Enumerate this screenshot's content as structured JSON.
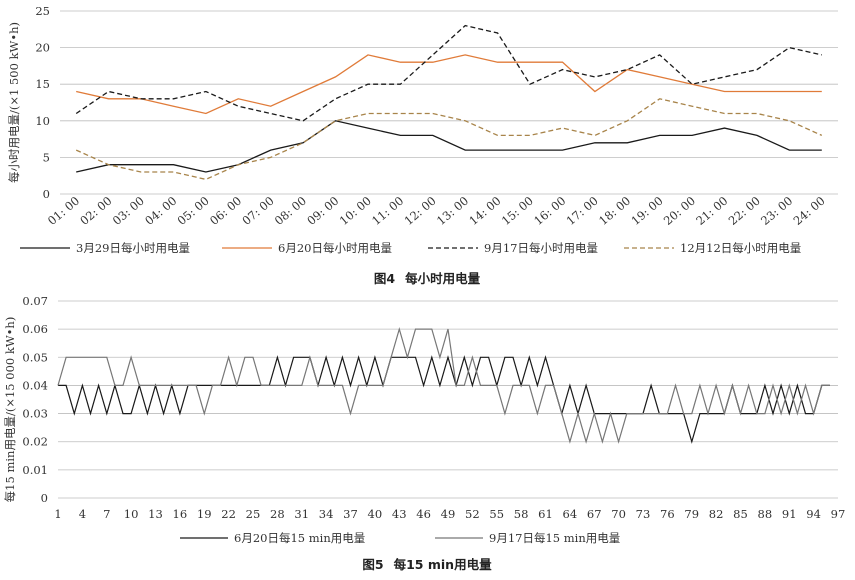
{
  "chart_data": [
    {
      "type": "line",
      "title": "图4 每小时用电量",
      "caption_prefix": "图4",
      "caption_text": "每小时用电量",
      "ylabel": "每小时用电量/(×1 500 kW•h)",
      "xlabel": "",
      "ylim": [
        0,
        25
      ],
      "yticks": [
        "0",
        "5",
        "10",
        "15",
        "20",
        "25"
      ],
      "grid": true,
      "legend_position": "bottom",
      "categories": [
        "01: 00",
        "02: 00",
        "03: 00",
        "04: 00",
        "05: 00",
        "06: 00",
        "07: 00",
        "08: 00",
        "09: 00",
        "10: 00",
        "11: 00",
        "12: 00",
        "13: 00",
        "14: 00",
        "15: 00",
        "16: 00",
        "17: 00",
        "18: 00",
        "19: 00",
        "20: 00",
        "21: 00",
        "22: 00",
        "23: 00",
        "24: 00"
      ],
      "series": [
        {
          "name": "3月29日每小时用电量",
          "color": "#1a1a1a",
          "dash": "none",
          "values": [
            3,
            4,
            4,
            4,
            3,
            4,
            6,
            7,
            10,
            9,
            8,
            8,
            6,
            6,
            6,
            6,
            7,
            7,
            8,
            8,
            9,
            8,
            6,
            6
          ]
        },
        {
          "name": "6月20日每小时用电量",
          "color": "#e07b39",
          "dash": "none",
          "values": [
            14,
            13,
            13,
            12,
            11,
            13,
            12,
            14,
            16,
            19,
            18,
            18,
            19,
            18,
            18,
            18,
            14,
            17,
            16,
            15,
            14,
            14,
            14,
            14
          ]
        },
        {
          "name": "9月17日每小时用电量",
          "color": "#1a1a1a",
          "dash": "dashed",
          "values": [
            11,
            14,
            13,
            13,
            14,
            12,
            11,
            10,
            13,
            15,
            15,
            19,
            23,
            22,
            15,
            17,
            16,
            17,
            19,
            15,
            16,
            17,
            20,
            19
          ]
        },
        {
          "name": "12月12日每小时用电量",
          "color": "#a8844a",
          "dash": "dashed",
          "values": [
            6,
            4,
            3,
            3,
            2,
            4,
            5,
            7,
            10,
            11,
            11,
            11,
            10,
            8,
            8,
            9,
            8,
            10,
            13,
            12,
            11,
            11,
            10,
            8
          ]
        }
      ]
    },
    {
      "type": "line",
      "title": "图5 每15 min用电量",
      "caption_prefix": "图5",
      "caption_text": "每15 min用电量",
      "ylabel": "每15 min用电量/(×15 000 kW•h)",
      "xlabel": "",
      "ylim": [
        0,
        0.07
      ],
      "yticks": [
        "0",
        "0.01",
        "0.02",
        "0.03",
        "0.04",
        "0.05",
        "0.06",
        "0.07"
      ],
      "xlim": [
        1,
        97
      ],
      "xticks": [
        1,
        4,
        7,
        10,
        13,
        16,
        19,
        22,
        25,
        28,
        31,
        34,
        37,
        40,
        43,
        46,
        49,
        52,
        55,
        58,
        61,
        64,
        67,
        70,
        73,
        76,
        79,
        82,
        85,
        88,
        91,
        94,
        97
      ],
      "grid": true,
      "legend_position": "bottom",
      "series": [
        {
          "name": "6月20日每15 min用电量",
          "color": "#1a1a1a",
          "x": [
            1,
            2,
            3,
            4,
            5,
            6,
            7,
            8,
            9,
            10,
            11,
            12,
            13,
            14,
            15,
            16,
            17,
            18,
            19,
            20,
            21,
            22,
            23,
            24,
            25,
            26,
            27,
            28,
            29,
            30,
            31,
            32,
            33,
            34,
            35,
            36,
            37,
            38,
            39,
            40,
            41,
            42,
            43,
            44,
            45,
            46,
            47,
            48,
            49,
            50,
            51,
            52,
            53,
            54,
            55,
            56,
            57,
            58,
            59,
            60,
            61,
            62,
            63,
            64,
            65,
            66,
            67,
            68,
            69,
            70,
            71,
            72,
            73,
            74,
            75,
            76,
            77,
            78,
            79,
            80,
            81,
            82,
            83,
            84,
            85,
            86,
            87,
            88,
            89,
            90,
            91,
            92,
            93,
            94,
            95,
            96
          ],
          "values": [
            0.04,
            0.04,
            0.03,
            0.04,
            0.03,
            0.04,
            0.03,
            0.04,
            0.03,
            0.03,
            0.04,
            0.03,
            0.04,
            0.03,
            0.04,
            0.03,
            0.04,
            0.04,
            0.04,
            0.04,
            0.04,
            0.04,
            0.04,
            0.04,
            0.04,
            0.04,
            0.04,
            0.05,
            0.04,
            0.05,
            0.05,
            0.05,
            0.04,
            0.05,
            0.04,
            0.05,
            0.04,
            0.05,
            0.04,
            0.05,
            0.04,
            0.05,
            0.05,
            0.05,
            0.05,
            0.04,
            0.05,
            0.04,
            0.05,
            0.04,
            0.05,
            0.04,
            0.05,
            0.05,
            0.04,
            0.05,
            0.05,
            0.04,
            0.05,
            0.04,
            0.05,
            0.04,
            0.03,
            0.04,
            0.03,
            0.04,
            0.03,
            0.03,
            0.03,
            0.03,
            0.03,
            0.03,
            0.03,
            0.04,
            0.03,
            0.03,
            0.03,
            0.03,
            0.02,
            0.03,
            0.03,
            0.03,
            0.03,
            0.04,
            0.03,
            0.03,
            0.03,
            0.04,
            0.03,
            0.04,
            0.03,
            0.04,
            0.03,
            0.03,
            0.04,
            0.04
          ]
        },
        {
          "name": "9月17日每15 min用电量",
          "color": "#777777",
          "x": [
            1,
            2,
            3,
            4,
            5,
            6,
            7,
            8,
            9,
            10,
            11,
            12,
            13,
            14,
            15,
            16,
            17,
            18,
            19,
            20,
            21,
            22,
            23,
            24,
            25,
            26,
            27,
            28,
            29,
            30,
            31,
            32,
            33,
            34,
            35,
            36,
            37,
            38,
            39,
            40,
            41,
            42,
            43,
            44,
            45,
            46,
            47,
            48,
            49,
            50,
            51,
            52,
            53,
            54,
            55,
            56,
            57,
            58,
            59,
            60,
            61,
            62,
            63,
            64,
            65,
            66,
            67,
            68,
            69,
            70,
            71,
            72,
            73,
            74,
            75,
            76,
            77,
            78,
            79,
            80,
            81,
            82,
            83,
            84,
            85,
            86,
            87,
            88,
            89,
            90,
            91,
            92,
            93,
            94,
            95,
            96
          ],
          "values": [
            0.04,
            0.05,
            0.05,
            0.05,
            0.05,
            0.05,
            0.05,
            0.04,
            0.04,
            0.05,
            0.04,
            0.04,
            0.04,
            0.04,
            0.04,
            0.04,
            0.04,
            0.04,
            0.03,
            0.04,
            0.04,
            0.05,
            0.04,
            0.05,
            0.05,
            0.04,
            0.04,
            0.04,
            0.04,
            0.04,
            0.04,
            0.05,
            0.04,
            0.04,
            0.04,
            0.04,
            0.03,
            0.04,
            0.04,
            0.04,
            0.04,
            0.05,
            0.06,
            0.05,
            0.06,
            0.06,
            0.06,
            0.05,
            0.06,
            0.04,
            0.04,
            0.05,
            0.04,
            0.04,
            0.04,
            0.03,
            0.04,
            0.04,
            0.04,
            0.03,
            0.04,
            0.04,
            0.03,
            0.02,
            0.03,
            0.02,
            0.03,
            0.02,
            0.03,
            0.02,
            0.03,
            0.03,
            0.03,
            0.03,
            0.03,
            0.03,
            0.04,
            0.03,
            0.03,
            0.04,
            0.03,
            0.04,
            0.03,
            0.04,
            0.03,
            0.04,
            0.03,
            0.03,
            0.04,
            0.03,
            0.04,
            0.03,
            0.04,
            0.03,
            0.04,
            0.04
          ]
        }
      ]
    }
  ]
}
